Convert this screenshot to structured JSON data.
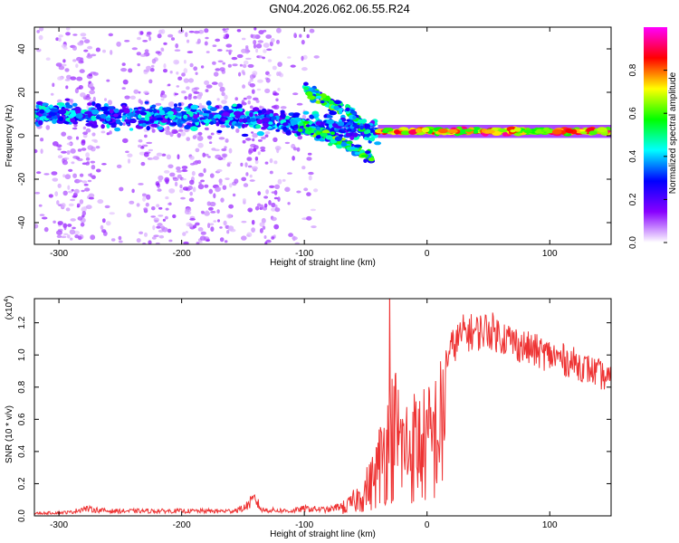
{
  "title": "GN04.2026.062.06.55.R24",
  "chart_data": [
    {
      "type": "heatmap",
      "xlabel": "Height of straight line (km)",
      "ylabel": "Frequency (Hz)",
      "xlim": [
        -320,
        150
      ],
      "ylim": [
        -50,
        50
      ],
      "xticks": [
        -300,
        -200,
        -100,
        0,
        100
      ],
      "xtick_labels": [
        "-300",
        "-200",
        "-100",
        "0",
        "100"
      ],
      "yticks": [
        -40,
        -20,
        0,
        20,
        40
      ],
      "ytick_labels": [
        "-40",
        "-20",
        "0",
        "20",
        "40"
      ],
      "colorbar": {
        "label": "Normalized spectral amplitude",
        "range": [
          0,
          1
        ],
        "ticks": [
          0.0,
          0.2,
          0.4,
          0.6,
          0.8
        ],
        "tick_labels": [
          "0.0",
          "0.2",
          "0.4",
          "0.6",
          "0.8"
        ],
        "colormap": [
          "#ffffff",
          "#8800ff",
          "#0000ff",
          "#00ffff",
          "#00ff00",
          "#ffff00",
          "#ff0000",
          "#ff00ff"
        ]
      },
      "features": [
        {
          "name": "band",
          "x": [
            -320,
            -150,
            -60,
            -40
          ],
          "y": [
            10,
            8,
            4,
            2
          ],
          "amp": 0.35
        },
        {
          "name": "descending_branch",
          "x": [
            -110,
            -70,
            -45
          ],
          "y": [
            6,
            -3,
            -10
          ],
          "amp": 0.5
        },
        {
          "name": "upper_branch",
          "x": [
            -100,
            -70
          ],
          "y": [
            22,
            12
          ],
          "amp": 0.5
        },
        {
          "name": "mid_branch",
          "x": [
            -65,
            -48
          ],
          "y": [
            12,
            2
          ],
          "amp": 0.45
        },
        {
          "name": "steady_line",
          "x": [
            -40,
            150
          ],
          "y": [
            2,
            2
          ],
          "amp": 0.85
        }
      ],
      "grid": false
    },
    {
      "type": "line",
      "xlabel": "Height of straight line (km)",
      "ylabel": "SNR (10 * v/v)",
      "scale_note": "(x10",
      "scale_exp": "4",
      "scale_close": ")",
      "xlim": [
        -320,
        150
      ],
      "ylim": [
        0,
        1.35
      ],
      "xticks": [
        -300,
        -200,
        -100,
        0,
        100
      ],
      "xtick_labels": [
        "-300",
        "-200",
        "-100",
        "0",
        "100"
      ],
      "yticks": [
        0.0,
        0.2,
        0.4,
        0.6,
        0.8,
        1.0,
        1.2
      ],
      "ytick_labels": [
        "0.0",
        "0.2",
        "0.4",
        "0.6",
        "0.8",
        "1.0",
        "1.2"
      ],
      "line_color": "#ee3333",
      "envelope": {
        "x": [
          -320,
          -290,
          -280,
          -260,
          -200,
          -160,
          -150,
          -140,
          -135,
          -110,
          -100,
          -80,
          -65,
          -55,
          -45,
          -40,
          -35,
          -30,
          -25,
          -20,
          -10,
          0,
          10,
          20,
          30,
          40,
          50,
          60,
          80,
          100,
          120,
          140,
          150
        ],
        "y": [
          0.02,
          0.03,
          0.06,
          0.04,
          0.04,
          0.04,
          0.06,
          0.14,
          0.05,
          0.04,
          0.06,
          0.05,
          0.1,
          0.2,
          0.35,
          0.5,
          0.7,
          0.8,
          0.9,
          0.7,
          0.75,
          0.75,
          0.9,
          1.1,
          1.2,
          1.2,
          1.22,
          1.18,
          1.1,
          1.05,
          1.0,
          0.93,
          0.88
        ]
      },
      "grid": false
    }
  ]
}
